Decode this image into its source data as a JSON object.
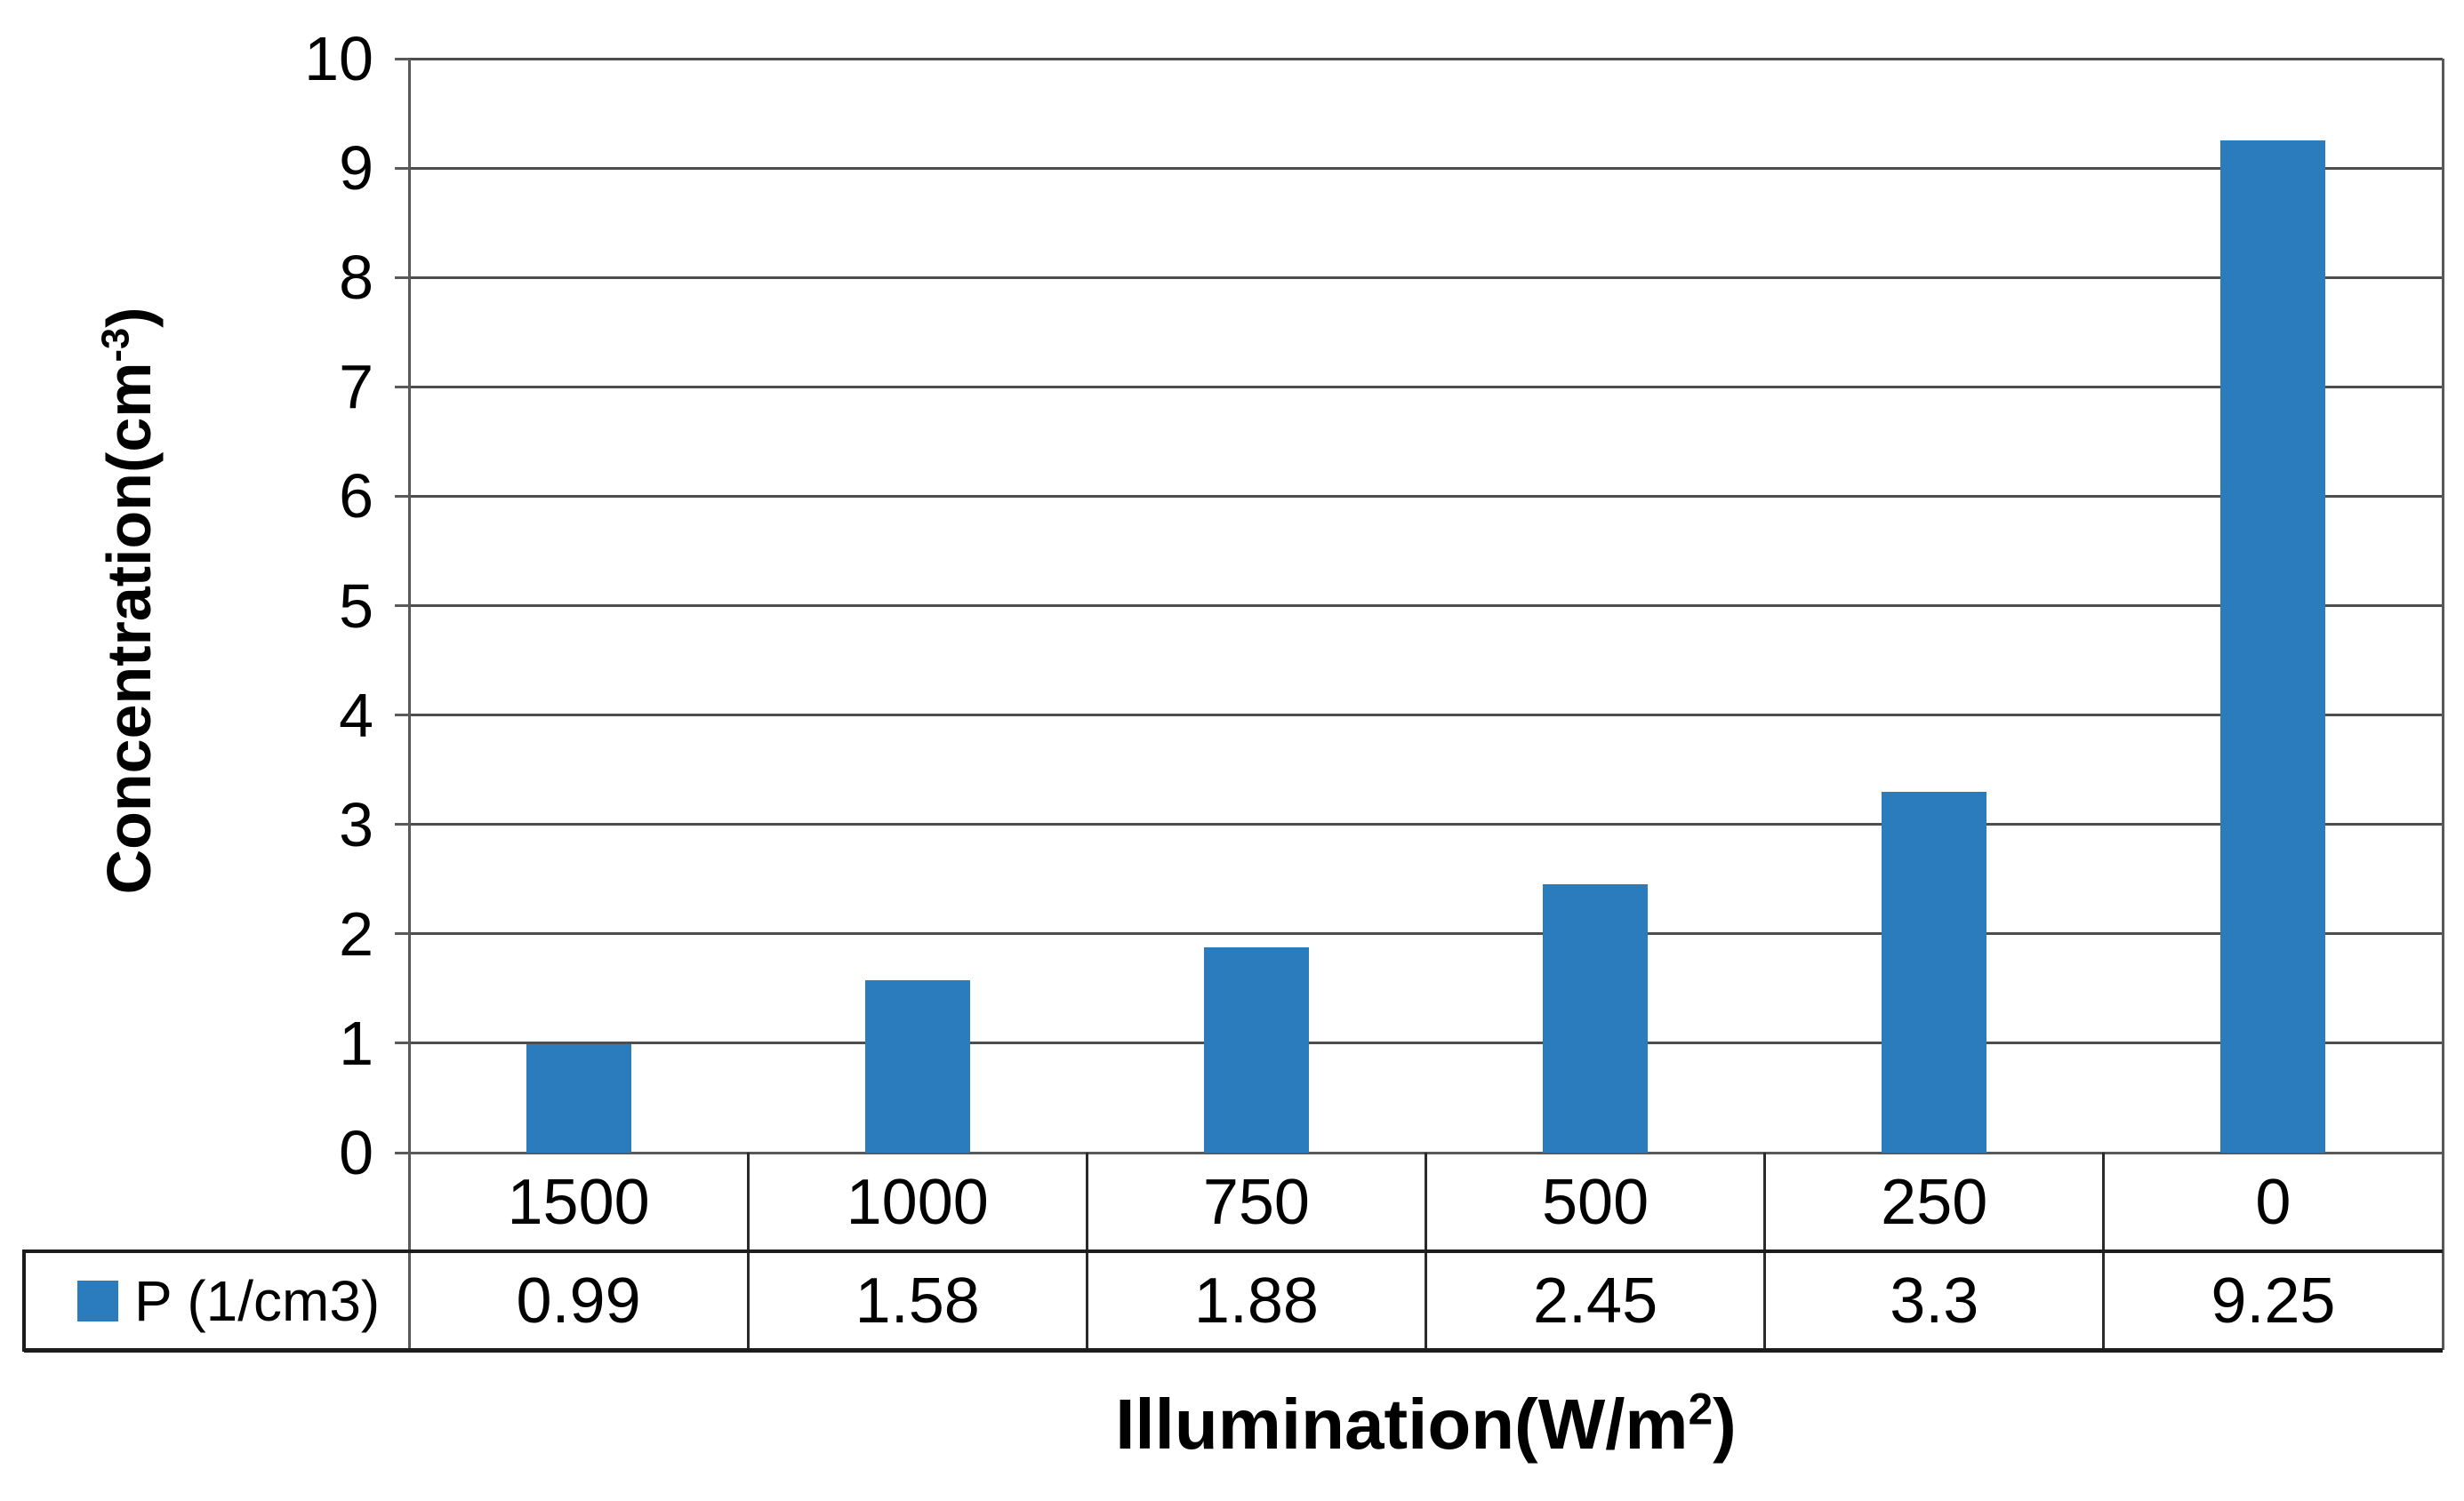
{
  "chart_data": {
    "type": "bar",
    "title": "",
    "categories": [
      "1500",
      "1000",
      "750",
      "500",
      "250",
      "0"
    ],
    "series": [
      {
        "name": "P (1/cm3)",
        "values": [
          0.99,
          1.58,
          1.88,
          2.45,
          3.3,
          9.25
        ],
        "value_labels": [
          "0.99",
          "1.58",
          "1.88",
          "2.45",
          "3.3",
          "9.25"
        ],
        "color": "#2b7cbd"
      }
    ],
    "xlabel": "Illumination(W/m²)",
    "xlabel_parts": {
      "main": "Illumination(W/m",
      "sup": "2",
      "end": ")"
    },
    "ylabel": "Concentration(cm⁻³)",
    "ylabel_parts": {
      "main": "Concentration(cm",
      "sup": "-3",
      "end": ")"
    },
    "ylim": [
      0,
      10
    ],
    "y_ticks": [
      "0",
      "1",
      "2",
      "3",
      "4",
      "5",
      "6",
      "7",
      "8",
      "9",
      "10"
    ],
    "y_tick_step": 1,
    "grid": true,
    "legend_position": "bottom data table row",
    "colors": {
      "bar": "#2b7cbd",
      "gridline": "#4d4d4d",
      "axis": "#595959",
      "table_border": "#1c1c1c",
      "text": "#000000",
      "background": "#ffffff"
    }
  }
}
